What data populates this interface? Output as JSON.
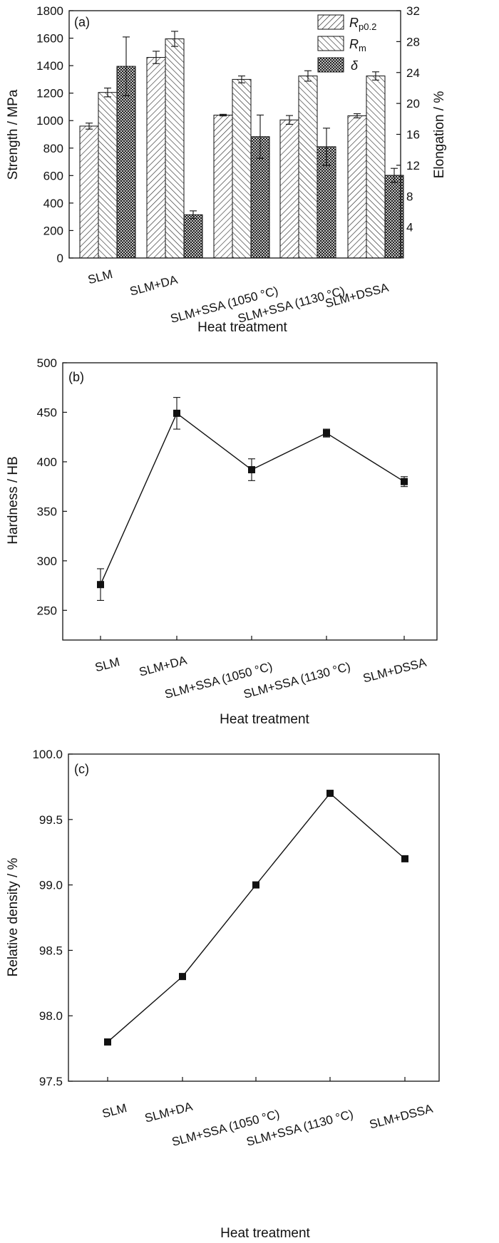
{
  "chart_data": [
    {
      "type": "bar",
      "panel_label": "(a)",
      "categories": [
        "SLM",
        "SLM+DA",
        "SLM+SSA (1050 °C)",
        "SLM+SSA (1130 °C)",
        "SLM+DSSA"
      ],
      "xlabel": "Heat treatment",
      "ylabel": "Strength / MPa",
      "ylim": [
        0,
        1800
      ],
      "yticks": [
        "0",
        "200",
        "400",
        "600",
        "800",
        "1000",
        "1200",
        "1400",
        "1600",
        "1800"
      ],
      "y2label": "Elongation / %",
      "y2lim": [
        0,
        32
      ],
      "y2ticks": [
        "4",
        "8",
        "12",
        "16",
        "20",
        "24",
        "28",
        "32"
      ],
      "legend_position": "top-right",
      "series": [
        {
          "name": "R",
          "sub": "p0.2",
          "axis": "left",
          "values": [
            960,
            1460,
            1040,
            1005,
            1035
          ],
          "errors": [
            22,
            45,
            6,
            32,
            15
          ]
        },
        {
          "name": "R",
          "sub": "m",
          "axis": "left",
          "values": [
            1205,
            1595,
            1300,
            1325,
            1325
          ],
          "errors": [
            32,
            55,
            25,
            38,
            30
          ]
        },
        {
          "name": "δ",
          "sub": "",
          "axis": "right",
          "values": [
            24.8,
            5.6,
            15.7,
            14.4,
            10.7
          ],
          "errors": [
            3.8,
            0.5,
            2.8,
            2.4,
            0.9
          ]
        }
      ]
    },
    {
      "type": "line",
      "panel_label": "(b)",
      "categories": [
        "SLM",
        "SLM+DA",
        "SLM+SSA (1050 °C)",
        "SLM+SSA (1130 °C)",
        "SLM+DSSA"
      ],
      "xlabel": "Heat treatment",
      "ylabel": "Hardness / HB",
      "ylim": [
        220,
        500
      ],
      "yticks": [
        "250",
        "300",
        "350",
        "400",
        "450",
        "500"
      ],
      "values": [
        276,
        449,
        392,
        429,
        380
      ],
      "errors": [
        16,
        16,
        11,
        4,
        5
      ]
    },
    {
      "type": "line",
      "panel_label": "(c)",
      "categories": [
        "SLM",
        "SLM+DA",
        "SLM+SSA (1050 °C)",
        "SLM+SSA (1130 °C)",
        "SLM+DSSA"
      ],
      "xlabel": "Heat treatment",
      "ylabel": "Relative density / %",
      "ylim": [
        97.5,
        100.0
      ],
      "yticks": [
        "97.5",
        "98.0",
        "98.5",
        "99.0",
        "99.5",
        "100.0"
      ],
      "values": [
        97.8,
        98.3,
        99.0,
        99.7,
        99.2
      ]
    }
  ]
}
